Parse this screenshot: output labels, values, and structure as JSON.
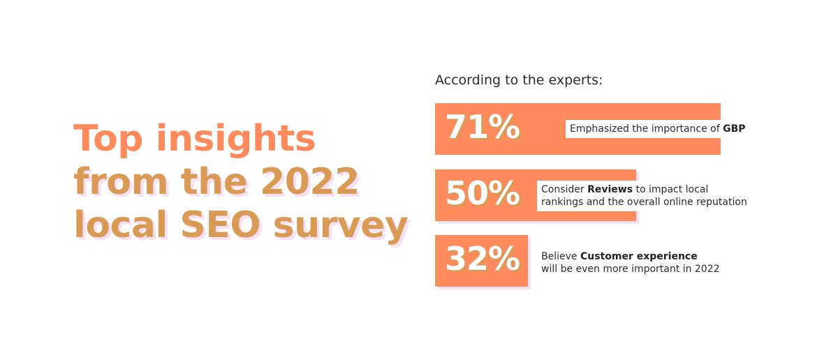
{
  "headline": {
    "line_1": "Top insights",
    "line_2": "from the 2022",
    "line_3": "local SEO survey"
  },
  "subheading": "According to the experts:",
  "colors": {
    "bar": "#ff8a5c",
    "headline_orange": "#ff8a5c",
    "headline_gold": "#d89a55",
    "shadow_pink": "#f9e0f2",
    "text_dark": "#2a2a2a"
  },
  "chart_data": {
    "type": "bar",
    "categories": [
      "Emphasized the importance of GBP",
      "Consider Reviews to impact local rankings and the overall online reputation",
      "Believe Customer experience will be even more important in 2022"
    ],
    "values": [
      71,
      50,
      32
    ],
    "unit": "%",
    "title": "Top insights from the 2022 local SEO survey",
    "subtitle": "According to the experts:",
    "ylim": [
      0,
      100
    ],
    "items": [
      {
        "value": 71,
        "value_label": "71%",
        "label_lines": [
          [
            {
              "text": "Emphasized the importance of ",
              "bold": false
            },
            {
              "text": "GBP",
              "bold": true
            }
          ]
        ]
      },
      {
        "value": 50,
        "value_label": "50%",
        "label_lines": [
          [
            {
              "text": "Consider ",
              "bold": false
            },
            {
              "text": "Reviews",
              "bold": true
            },
            {
              "text": " to impact local",
              "bold": false
            }
          ],
          [
            {
              "text": "rankings and the overall online reputation",
              "bold": false
            }
          ]
        ]
      },
      {
        "value": 32,
        "value_label": "32%",
        "label_lines": [
          [
            {
              "text": "Believe ",
              "bold": false
            },
            {
              "text": "Customer experience",
              "bold": true
            }
          ],
          [
            {
              "text": "will be even more important in 2022",
              "bold": false
            }
          ]
        ]
      }
    ]
  }
}
